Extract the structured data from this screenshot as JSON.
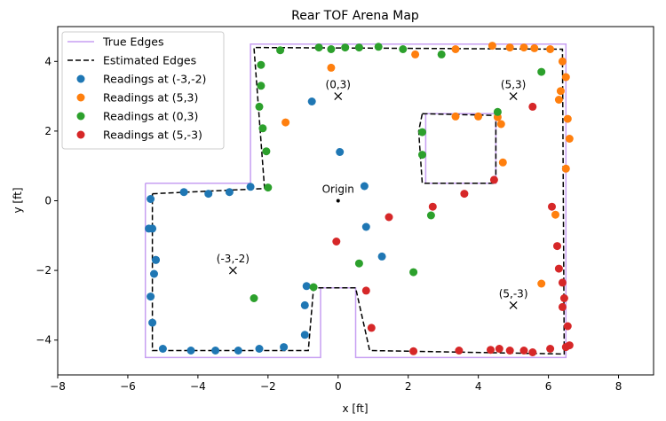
{
  "chart_data": {
    "type": "scatter",
    "title": "Rear TOF Arena Map",
    "xlabel": "x [ft]",
    "ylabel": "y [ft]",
    "xlim": [
      -8,
      9
    ],
    "ylim": [
      -5,
      5
    ],
    "xticks": [
      -8,
      -6,
      -4,
      -2,
      0,
      2,
      4,
      6,
      8
    ],
    "yticks": [
      -4,
      -2,
      0,
      2,
      4
    ],
    "grid": false,
    "legend_position": "top-left",
    "lines": [
      {
        "name": "True Edges",
        "color": "#c79ff2",
        "style": "solid",
        "x": [
          -5.5,
          -2.5,
          -2.5,
          6.5,
          6.5,
          0.5,
          0.5,
          -0.5,
          -0.5,
          -5.5,
          -5.5
        ],
        "y": [
          0.5,
          0.5,
          4.5,
          4.5,
          -4.5,
          -4.5,
          -2.5,
          -2.5,
          -4.5,
          -4.5,
          0.5
        ]
      },
      {
        "name": "",
        "color": "#c79ff2",
        "style": "solid",
        "x": [
          2.5,
          4.5,
          4.5,
          2.5,
          2.5
        ],
        "y": [
          2.5,
          2.5,
          0.5,
          0.5,
          2.5
        ]
      },
      {
        "name": "Estimated Edges",
        "color": "#000000",
        "style": "dashed",
        "x": [
          -5.3,
          -2.1,
          -2.4,
          6.4,
          6.45,
          0.9,
          0.5,
          -0.7,
          -0.85,
          -5.3,
          -5.3
        ],
        "y": [
          0.2,
          0.35,
          4.4,
          4.35,
          -4.4,
          -4.3,
          -2.5,
          -2.5,
          -4.3,
          -4.3,
          0.2
        ]
      },
      {
        "name": "",
        "color": "#000000",
        "style": "dashed",
        "x": [
          2.4,
          4.5,
          4.5,
          2.4,
          2.3,
          2.4
        ],
        "y": [
          2.5,
          2.45,
          0.5,
          0.5,
          2.0,
          2.5
        ]
      }
    ],
    "series": [
      {
        "name": "Readings at (-3,-2)",
        "color": "#1f77b4",
        "x": [
          -5.35,
          -5.3,
          -5.35,
          -5.25,
          -5.2,
          -5.2,
          -5.3,
          -5.4,
          -4.4,
          -3.7,
          -3.1,
          -2.5,
          -5.0,
          -4.2,
          -3.5,
          -2.85,
          -2.25,
          -1.55,
          -0.95,
          -0.95,
          -0.9,
          -0.75,
          0.05,
          0.75,
          0.8,
          1.25
        ],
        "y": [
          0.05,
          -0.8,
          -2.75,
          -2.1,
          -1.7,
          -1.7,
          -3.5,
          -0.8,
          0.25,
          0.2,
          0.25,
          0.4,
          -4.25,
          -4.3,
          -4.3,
          -4.3,
          -4.25,
          -4.2,
          -3.85,
          -3.0,
          -2.45,
          2.85,
          1.4,
          0.42,
          -0.75,
          -1.6
        ]
      },
      {
        "name": "Readings at (5,3)",
        "color": "#ff7f0e",
        "x": [
          -1.5,
          -0.2,
          2.2,
          3.35,
          3.35,
          4.0,
          4.4,
          4.55,
          4.65,
          4.9,
          5.3,
          5.6,
          6.05,
          6.3,
          6.35,
          6.4,
          6.5,
          6.55,
          6.6,
          6.5,
          6.2,
          5.8,
          4.7
        ],
        "y": [
          2.25,
          3.82,
          4.2,
          4.35,
          2.42,
          2.42,
          4.45,
          2.4,
          2.2,
          4.4,
          4.4,
          4.38,
          4.35,
          2.9,
          3.15,
          4.0,
          3.55,
          2.35,
          1.78,
          0.92,
          -0.4,
          -2.38,
          1.1
        ]
      },
      {
        "name": "Readings at (0,3)",
        "color": "#2ca02c",
        "x": [
          -2.2,
          -2.2,
          -2.25,
          -2.15,
          -2.05,
          -2.0,
          -1.65,
          -0.55,
          -0.2,
          0.2,
          0.6,
          1.15,
          1.85,
          2.95,
          4.55,
          5.8,
          2.4,
          2.4,
          2.65,
          2.15,
          0.6,
          -0.7,
          -2.4
        ],
        "y": [
          3.9,
          3.3,
          2.7,
          2.08,
          1.42,
          0.38,
          4.32,
          4.4,
          4.35,
          4.4,
          4.4,
          4.42,
          4.35,
          4.2,
          2.55,
          3.7,
          1.32,
          1.97,
          -0.42,
          -2.05,
          -1.8,
          -2.48,
          -2.8
        ]
      },
      {
        "name": "Readings at (5,-3)",
        "color": "#d62728",
        "x": [
          -0.05,
          0.8,
          0.95,
          1.45,
          2.15,
          2.7,
          3.45,
          3.6,
          4.35,
          4.45,
          4.6,
          4.9,
          5.3,
          5.55,
          6.05,
          6.1,
          6.25,
          6.3,
          6.4,
          6.45,
          6.4,
          6.5,
          6.55,
          6.6,
          5.55
        ],
        "y": [
          -1.17,
          -2.58,
          -3.65,
          -0.47,
          -4.32,
          -0.17,
          -4.3,
          0.2,
          -4.28,
          0.6,
          -4.25,
          -4.3,
          -4.3,
          -4.35,
          -4.25,
          -0.17,
          -1.3,
          -1.95,
          -2.35,
          -2.8,
          -3.05,
          -4.2,
          -3.6,
          -4.15,
          2.7
        ]
      }
    ],
    "annotations": [
      {
        "label": "(0,3)",
        "x": 0,
        "y": 3,
        "marker": "x"
      },
      {
        "label": "(5,3)",
        "x": 5,
        "y": 3,
        "marker": "x"
      },
      {
        "label": "(-3,-2)",
        "x": -3,
        "y": -2,
        "marker": "x"
      },
      {
        "label": "(5,-3)",
        "x": 5,
        "y": -3,
        "marker": "x"
      },
      {
        "label": "Origin",
        "x": 0,
        "y": 0,
        "marker": "dot"
      }
    ]
  }
}
